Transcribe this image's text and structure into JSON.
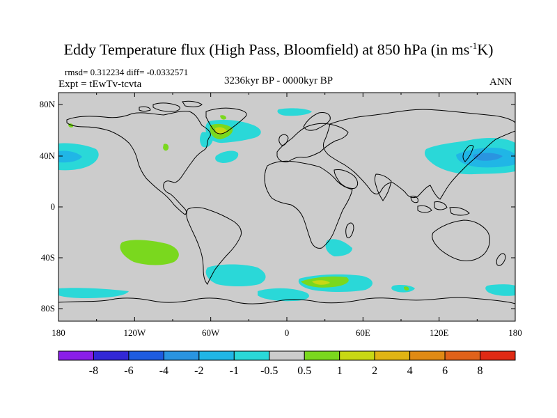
{
  "title": {
    "prefix": "Eddy Temperature flux (High Pass, Bloomfield) at 850 hPa (in ms",
    "sup": "-1",
    "suffix": "K)"
  },
  "stats_line": "rmsd= 0.312234 diff= -0.0332571",
  "expt_line": "Expt = tEwTv-tcvta",
  "period": "3236kyr BP - 0000kyr BP",
  "season": "ANN",
  "lat_axis": [
    "80N",
    "40N",
    "0",
    "40S",
    "80S"
  ],
  "lon_axis": [
    "180",
    "120W",
    "60W",
    "0",
    "60E",
    "120E",
    "180"
  ],
  "colorbar": {
    "labels": [
      "-8",
      "-6",
      "-4",
      "-2",
      "-1",
      "-0.5",
      "0.5",
      "1",
      "2",
      "4",
      "6",
      "8"
    ],
    "colors": [
      "#8a1ee8",
      "#3228d6",
      "#1e5ce0",
      "#2a94e0",
      "#20b6e6",
      "#2ad8d8",
      "#cccccc",
      "#7ad81e",
      "#c8d814",
      "#e0b414",
      "#e08a14",
      "#e0621a",
      "#e02a14"
    ]
  },
  "map_colors": {
    "background": "#cccccc",
    "coastline": "#000000"
  }
}
